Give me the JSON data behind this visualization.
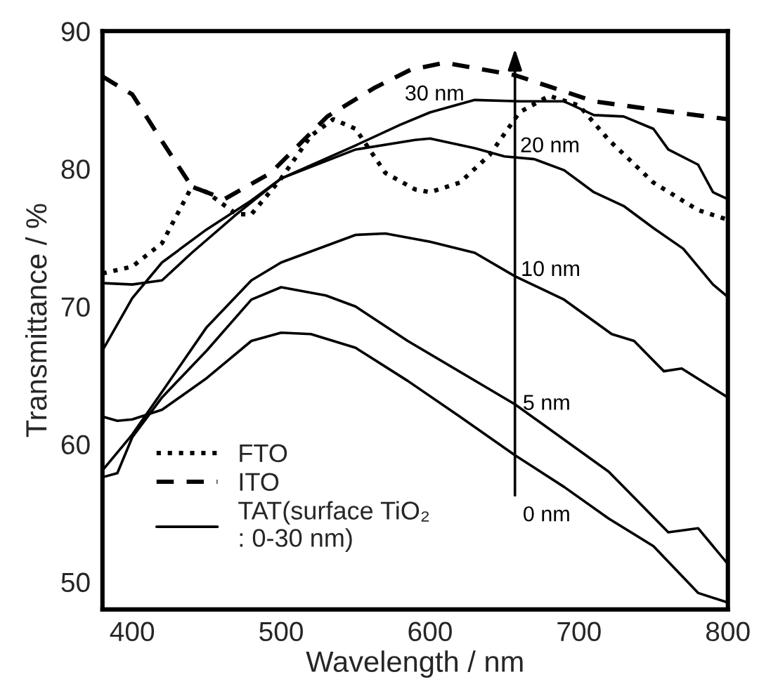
{
  "chart_data": {
    "type": "line",
    "xlabel": "Wavelength / nm",
    "ylabel": "Transmittance / %",
    "xlim": [
      380,
      800
    ],
    "ylim": [
      48,
      90
    ],
    "xticks": [
      400,
      500,
      600,
      700,
      800
    ],
    "yticks": [
      50,
      60,
      70,
      80,
      90
    ],
    "grid": false,
    "legend": "bottom left",
    "marker": "none",
    "series": [
      {
        "name": "FTO",
        "color": "#000000",
        "line_style": "dotted",
        "x": [
          380,
          400,
          420,
          440,
          450,
          470,
          480,
          500,
          520,
          535,
          550,
          570,
          590,
          600,
          620,
          640,
          660,
          680,
          700,
          720,
          750,
          780,
          800
        ],
        "values": [
          72.4,
          72.9,
          74.6,
          78.7,
          78.3,
          76.7,
          76.7,
          79.3,
          82.4,
          83.6,
          82.9,
          79.7,
          78.5,
          78.3,
          79,
          81,
          84.1,
          85.3,
          84.6,
          82.1,
          79,
          77,
          76.3
        ]
      },
      {
        "name": "ITO",
        "color": "#000000",
        "line_style": "dashed",
        "x": [
          380,
          400,
          420,
          440,
          462,
          493,
          531,
          563,
          587,
          610,
          657,
          710,
          750,
          800
        ],
        "values": [
          86.7,
          85.4,
          82,
          78.7,
          77.8,
          79.7,
          83.8,
          85.9,
          87.2,
          87.7,
          86.8,
          84.9,
          84.3,
          83.6
        ]
      },
      {
        "name": "TAT(surface TiO₂\n: 0-30 nm)",
        "color": "#000000",
        "line_style": "solid",
        "x": [
          380,
          390,
          400,
          420,
          450,
          480,
          500,
          520,
          550,
          585,
          620,
          657,
          690,
          720,
          750,
          780,
          800
        ],
        "values": [
          62,
          61.7,
          61.8,
          62.5,
          64.8,
          67.5,
          68.1,
          68,
          67,
          64.6,
          62,
          59.2,
          56.9,
          54.6,
          52.6,
          49.2,
          48.5
        ]
      },
      {
        "color": "#000000",
        "line_style": "solid",
        "x": [
          380,
          390,
          400,
          420,
          450,
          480,
          500,
          530,
          550,
          585,
          657,
          720,
          760,
          780,
          800
        ],
        "values": [
          57.6,
          57.9,
          60.5,
          63.4,
          66.8,
          70.5,
          71.4,
          70.8,
          70,
          67.5,
          62.9,
          58,
          53.6,
          53.9,
          51.3
        ]
      },
      {
        "color": "#000000",
        "line_style": "solid",
        "x": [
          380,
          400,
          420,
          450,
          480,
          500,
          550,
          570,
          600,
          630,
          657,
          690,
          722,
          737,
          757,
          769,
          800
        ],
        "values": [
          58.1,
          60.7,
          63.8,
          68.5,
          71.9,
          73.2,
          75.2,
          75.3,
          74.7,
          73.9,
          72.2,
          70.5,
          68,
          67.5,
          65.3,
          65.5,
          63.4
        ]
      },
      {
        "color": "#000000",
        "line_style": "solid",
        "x": [
          380,
          400,
          420,
          440,
          470,
          500,
          550,
          590,
          600,
          630,
          650,
          670,
          690,
          710,
          730,
          750,
          770,
          790,
          800
        ],
        "values": [
          71.7,
          71.6,
          71.9,
          73.9,
          76.7,
          79.3,
          81.4,
          82.1,
          82.2,
          81.5,
          80.9,
          80.7,
          79.9,
          78.3,
          77.3,
          75.7,
          74.2,
          71.6,
          70.7
        ]
      },
      {
        "color": "#000000",
        "line_style": "solid",
        "x": [
          380,
          400,
          420,
          450,
          480,
          500,
          550,
          580,
          600,
          630,
          660,
          690,
          710,
          730,
          750,
          760,
          780,
          790,
          800
        ],
        "values": [
          66.8,
          70.6,
          73.2,
          75.6,
          77.7,
          79.3,
          81.7,
          83.2,
          84.1,
          85,
          84.9,
          84.9,
          83.9,
          83.8,
          82.9,
          81.4,
          80.3,
          78.3,
          77.8
        ]
      }
    ],
    "annotations": [
      {
        "text": "30 nm",
        "x": 600,
        "y": 84.1
      },
      {
        "text": "20 nm",
        "x": 650,
        "y": 80.9
      },
      {
        "text": "10 nm",
        "x": 657,
        "y": 72.2
      },
      {
        "text": "5 nm",
        "x": 657,
        "y": 62.9
      },
      {
        "text": "0 nm",
        "x": 657,
        "y": 59.2
      }
    ]
  }
}
